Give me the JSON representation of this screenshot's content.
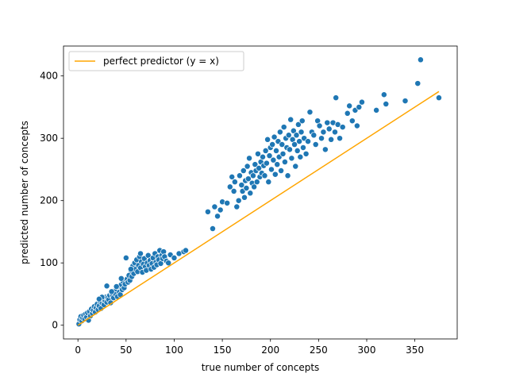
{
  "chart_data": {
    "type": "scatter",
    "xlabel": "true number of concepts",
    "ylabel": "predicted number of concepts",
    "xlim": [
      -15,
      394
    ],
    "ylim": [
      -22,
      448
    ],
    "xticks": [
      0,
      50,
      100,
      150,
      200,
      250,
      300,
      350
    ],
    "yticks": [
      0,
      100,
      200,
      300,
      400
    ],
    "grid": false,
    "legend_position": "upper-left",
    "colors": {
      "points": "#1f77b4",
      "line": "#ffa500",
      "point_edge": "#ffffff"
    },
    "series": [
      {
        "name": "",
        "kind": "scatter",
        "points": [
          [
            1,
            2
          ],
          [
            2,
            9
          ],
          [
            3,
            14
          ],
          [
            4,
            7
          ],
          [
            5,
            12
          ],
          [
            6,
            16
          ],
          [
            7,
            10
          ],
          [
            8,
            18
          ],
          [
            9,
            13
          ],
          [
            10,
            20
          ],
          [
            11,
            8
          ],
          [
            12,
            22
          ],
          [
            13,
            15
          ],
          [
            14,
            26
          ],
          [
            15,
            19
          ],
          [
            16,
            24
          ],
          [
            17,
            30
          ],
          [
            18,
            21
          ],
          [
            19,
            28
          ],
          [
            20,
            34
          ],
          [
            21,
            25
          ],
          [
            22,
            31
          ],
          [
            23,
            38
          ],
          [
            24,
            27
          ],
          [
            25,
            36
          ],
          [
            26,
            42
          ],
          [
            27,
            33
          ],
          [
            28,
            40
          ],
          [
            29,
            45
          ],
          [
            30,
            37
          ],
          [
            31,
            44
          ],
          [
            32,
            41
          ],
          [
            33,
            48
          ],
          [
            34,
            36
          ],
          [
            35,
            52
          ],
          [
            36,
            47
          ],
          [
            37,
            44
          ],
          [
            38,
            55
          ],
          [
            39,
            50
          ],
          [
            40,
            58
          ],
          [
            41,
            46
          ],
          [
            42,
            62
          ],
          [
            43,
            53
          ],
          [
            44,
            49
          ],
          [
            45,
            65
          ],
          [
            46,
            57
          ],
          [
            47,
            70
          ],
          [
            48,
            60
          ],
          [
            49,
            66
          ],
          [
            50,
            108
          ],
          [
            51,
            74
          ],
          [
            52,
            69
          ],
          [
            53,
            80
          ],
          [
            54,
            72
          ],
          [
            55,
            88
          ],
          [
            56,
            78
          ],
          [
            57,
            95
          ],
          [
            58,
            83
          ],
          [
            59,
            100
          ],
          [
            60,
            90
          ],
          [
            61,
            105
          ],
          [
            62,
            86
          ],
          [
            63,
            96
          ],
          [
            64,
            110
          ],
          [
            65,
            92
          ],
          [
            66,
            102
          ],
          [
            67,
            85
          ],
          [
            68,
            98
          ],
          [
            69,
            107
          ],
          [
            70,
            94
          ],
          [
            71,
            88
          ],
          [
            72,
            100
          ],
          [
            73,
            112
          ],
          [
            74,
            96
          ],
          [
            75,
            104
          ],
          [
            76,
            90
          ],
          [
            77,
            99
          ],
          [
            78,
            108
          ],
          [
            79,
            93
          ],
          [
            80,
            115
          ],
          [
            81,
            101
          ],
          [
            82,
            97
          ],
          [
            83,
            110
          ],
          [
            84,
            105
          ],
          [
            85,
            120
          ],
          [
            86,
            99
          ],
          [
            87,
            112
          ],
          [
            88,
            107
          ],
          [
            89,
            118
          ],
          [
            90,
            110
          ],
          [
            92,
            103
          ],
          [
            94,
            100
          ],
          [
            96,
            113
          ],
          [
            100,
            108
          ],
          [
            105,
            115
          ],
          [
            110,
            118
          ],
          [
            112,
            120
          ],
          [
            30,
            63
          ],
          [
            45,
            75
          ],
          [
            55,
            90
          ],
          [
            65,
            115
          ],
          [
            35,
            54
          ],
          [
            25,
            45
          ],
          [
            22,
            42
          ],
          [
            40,
            62
          ],
          [
            135,
            182
          ],
          [
            140,
            155
          ],
          [
            142,
            190
          ],
          [
            145,
            175
          ],
          [
            148,
            185
          ],
          [
            150,
            198
          ],
          [
            155,
            196
          ],
          [
            158,
            222
          ],
          [
            160,
            238
          ],
          [
            162,
            215
          ],
          [
            163,
            230
          ],
          [
            165,
            190
          ],
          [
            167,
            200
          ],
          [
            168,
            240
          ],
          [
            170,
            225
          ],
          [
            171,
            215
          ],
          [
            172,
            248
          ],
          [
            173,
            205
          ],
          [
            174,
            232
          ],
          [
            175,
            220
          ],
          [
            176,
            255
          ],
          [
            177,
            235
          ],
          [
            178,
            268
          ],
          [
            179,
            212
          ],
          [
            180,
            245
          ],
          [
            181,
            228
          ],
          [
            182,
            240
          ],
          [
            183,
            222
          ],
          [
            184,
            258
          ],
          [
            185,
            248
          ],
          [
            186,
            230
          ],
          [
            187,
            275
          ],
          [
            188,
            252
          ],
          [
            189,
            238
          ],
          [
            190,
            262
          ],
          [
            191,
            244
          ],
          [
            192,
            270
          ],
          [
            193,
            256
          ],
          [
            194,
            240
          ],
          [
            195,
            280
          ],
          [
            196,
            260
          ],
          [
            197,
            298
          ],
          [
            198,
            230
          ],
          [
            199,
            272
          ],
          [
            200,
            285
          ],
          [
            201,
            250
          ],
          [
            202,
            290
          ],
          [
            203,
            265
          ],
          [
            204,
            302
          ],
          [
            205,
            242
          ],
          [
            206,
            280
          ],
          [
            207,
            258
          ],
          [
            208,
            295
          ],
          [
            209,
            270
          ],
          [
            210,
            310
          ],
          [
            211,
            248
          ],
          [
            212,
            290
          ],
          [
            213,
            275
          ],
          [
            214,
            318
          ],
          [
            215,
            262
          ],
          [
            216,
            300
          ],
          [
            217,
            285
          ],
          [
            218,
            240
          ],
          [
            219,
            305
          ],
          [
            220,
            282
          ],
          [
            221,
            330
          ],
          [
            222,
            268
          ],
          [
            223,
            298
          ],
          [
            224,
            312
          ],
          [
            225,
            290
          ],
          [
            226,
            255
          ],
          [
            227,
            305
          ],
          [
            228,
            280
          ],
          [
            229,
            322
          ],
          [
            230,
            295
          ],
          [
            231,
            270
          ],
          [
            232,
            310
          ],
          [
            233,
            328
          ],
          [
            234,
            285
          ],
          [
            235,
            300
          ],
          [
            237,
            275
          ],
          [
            239,
            295
          ],
          [
            241,
            342
          ],
          [
            243,
            310
          ],
          [
            245,
            305
          ],
          [
            247,
            290
          ],
          [
            249,
            328
          ],
          [
            251,
            320
          ],
          [
            253,
            300
          ],
          [
            255,
            310
          ],
          [
            257,
            282
          ],
          [
            259,
            325
          ],
          [
            261,
            315
          ],
          [
            263,
            298
          ],
          [
            265,
            325
          ],
          [
            267,
            310
          ],
          [
            268,
            365
          ],
          [
            270,
            322
          ],
          [
            272,
            300
          ],
          [
            275,
            318
          ],
          [
            280,
            340
          ],
          [
            282,
            352
          ],
          [
            285,
            328
          ],
          [
            288,
            345
          ],
          [
            290,
            320
          ],
          [
            292,
            350
          ],
          [
            295,
            358
          ],
          [
            310,
            345
          ],
          [
            318,
            370
          ],
          [
            320,
            355
          ],
          [
            340,
            360
          ],
          [
            353,
            388
          ],
          [
            356,
            426
          ],
          [
            375,
            365
          ]
        ]
      },
      {
        "name": "perfect predictor (y = x)",
        "kind": "line",
        "points": [
          [
            0,
            0
          ],
          [
            375,
            375
          ]
        ]
      }
    ]
  }
}
